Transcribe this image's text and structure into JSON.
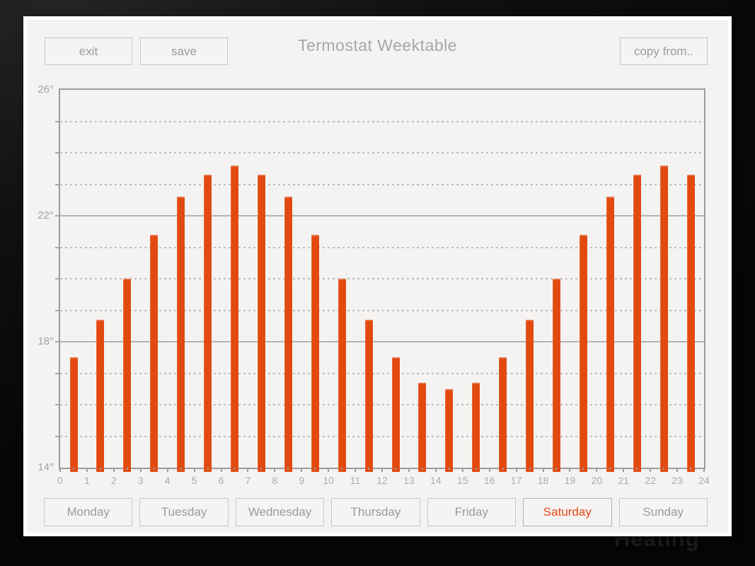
{
  "header": {
    "title": "Termostat Weektable",
    "exit_label": "exit",
    "save_label": "save",
    "copy_from_label": "copy from.."
  },
  "chart_data": {
    "type": "bar",
    "title": "Termostat Weektable",
    "categories": [
      0,
      1,
      2,
      3,
      4,
      5,
      6,
      7,
      8,
      9,
      10,
      11,
      12,
      13,
      14,
      15,
      16,
      17,
      18,
      19,
      20,
      21,
      22,
      23
    ],
    "values": [
      17.5,
      18.7,
      20.0,
      21.4,
      22.6,
      23.3,
      23.6,
      23.3,
      22.6,
      21.4,
      20.0,
      18.7,
      17.5,
      16.7,
      16.5,
      16.7,
      17.5,
      18.7,
      20.0,
      21.4,
      22.6,
      23.3,
      23.6,
      23.3
    ],
    "unit": "°C",
    "ylim": [
      14,
      26
    ],
    "y_tick_values": [
      26,
      22,
      18,
      14
    ],
    "y_tick_labels": [
      "26°",
      "22°",
      "18°",
      "14°"
    ],
    "x_tick_labels": [
      "0",
      "1",
      "2",
      "3",
      "4",
      "5",
      "6",
      "7",
      "8",
      "9",
      "10",
      "11",
      "12",
      "13",
      "14",
      "15",
      "16",
      "17",
      "18",
      "19",
      "20",
      "21",
      "22",
      "23",
      "24"
    ],
    "grid": "solid major every 4 degrees, dashed minor every 1 degree",
    "legend": "none",
    "bar_color": "#e24a10"
  },
  "days": {
    "items": [
      {
        "label": "Monday",
        "active": false
      },
      {
        "label": "Tuesday",
        "active": false
      },
      {
        "label": "Wednesday",
        "active": false
      },
      {
        "label": "Thursday",
        "active": false
      },
      {
        "label": "Friday",
        "active": false
      },
      {
        "label": "Saturday",
        "active": true
      },
      {
        "label": "Sunday",
        "active": false
      }
    ]
  },
  "background": {
    "heating_text": "Heating"
  },
  "colors": {
    "bar": "#e24a10",
    "active_day_text": "#e8481c",
    "panel_bg": "#f4f3f1",
    "button_border": "#c6c6c6",
    "muted_text": "#9b9b9b",
    "grid_solid": "#b3b3b3",
    "grid_dashed": "#bdbdbd",
    "axis": "#9c9c9c"
  }
}
